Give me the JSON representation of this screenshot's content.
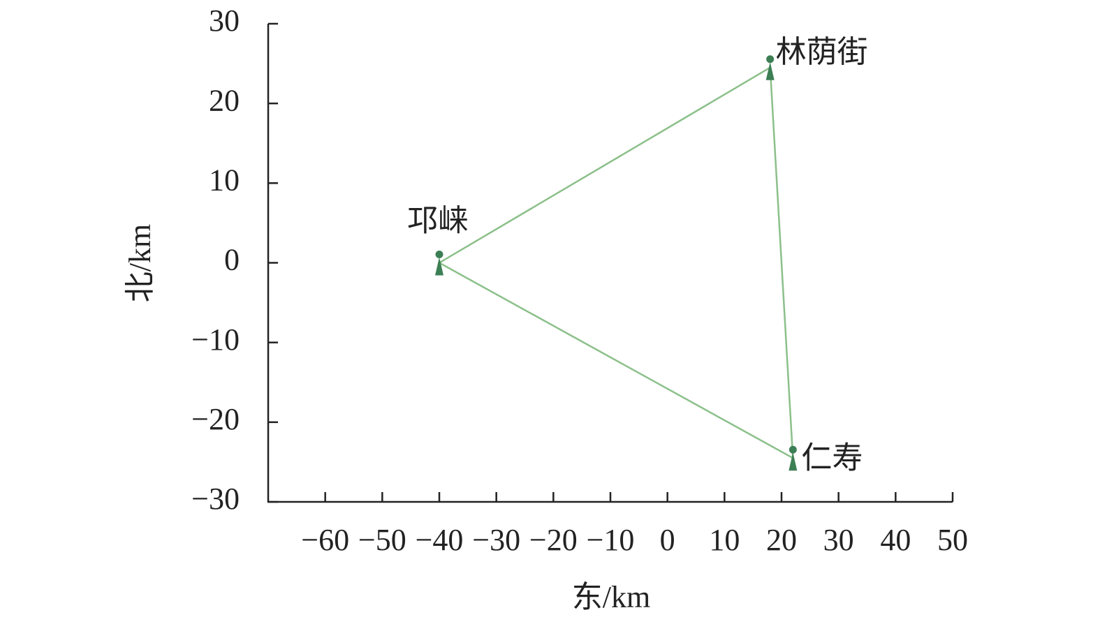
{
  "chart_data": {
    "type": "scatter",
    "x_label": "东/km",
    "y_label": "北/km",
    "x": [
      -40,
      18,
      22
    ],
    "labels": [
      "邛崃",
      "林荫街",
      "仁寿"
    ],
    "series": [
      {
        "color": "#3d7f54",
        "values": [
          0,
          24.5,
          -24.5
        ]
      }
    ],
    "connect": "closed",
    "line_color": "#8cc08a",
    "xlim": [
      -70,
      50
    ],
    "xticks": [
      {
        "value": -60,
        "label": "−60"
      },
      {
        "value": -50,
        "label": "−50"
      },
      {
        "value": -40,
        "label": "−40"
      },
      {
        "value": -30,
        "label": "−30"
      },
      {
        "value": -20,
        "label": "−20"
      },
      {
        "value": -10,
        "label": "−10"
      },
      0,
      10,
      20,
      30,
      40,
      50
    ],
    "ylim": [
      -30,
      30
    ],
    "yticks": [
      {
        "value": -30,
        "label": "−30"
      },
      {
        "value": -20,
        "label": "−20"
      },
      {
        "value": -10,
        "label": "−10"
      },
      0,
      10,
      20,
      30
    ],
    "grid": false
  }
}
